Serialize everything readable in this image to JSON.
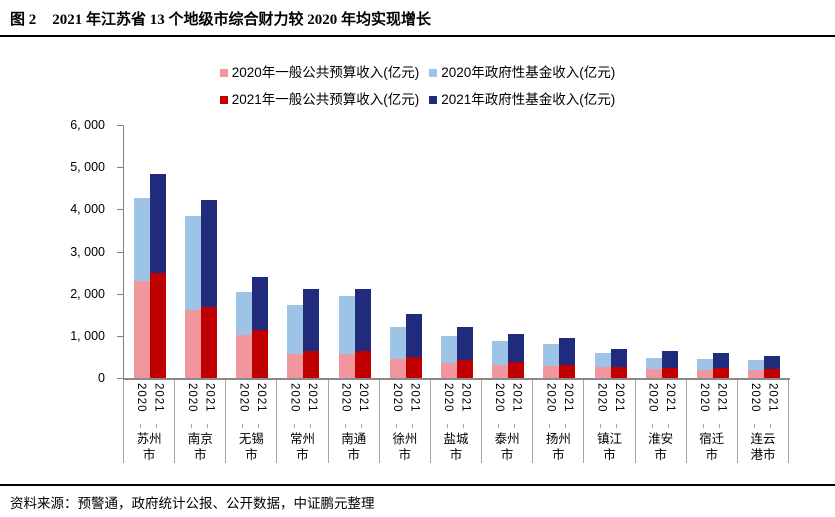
{
  "header": {
    "figure_label": "图 2",
    "title": "2021 年江苏省 13 个地级市综合财力较 2020 年均实现增长"
  },
  "footer": {
    "source": "资料来源：预警通，政府统计公报、公开数据，中证鹏元整理"
  },
  "chart_data": {
    "type": "bar",
    "stacked": true,
    "unit": "亿元",
    "legend_position": "top",
    "gridlines": false,
    "categories": [
      "苏州市",
      "南京市",
      "无锡市",
      "常州市",
      "南通市",
      "徐州市",
      "盐城市",
      "泰州市",
      "扬州市",
      "镇江市",
      "淮安市",
      "宿迁市",
      "连云港市"
    ],
    "bar_labels": [
      "2020",
      "2021"
    ],
    "y_axis": {
      "min": 0,
      "max": 6000,
      "tick_step": 1000,
      "tick_labels_top_down": [
        "6, 000",
        "5, 000",
        "4, 000",
        "3, 000",
        "2, 000",
        "1, 000",
        "0"
      ]
    },
    "series": [
      {
        "name": "2020年一般公共预算收入(亿元)",
        "bar": "2020",
        "color": "#F1969C",
        "values": [
          2300,
          1620,
          1030,
          560,
          580,
          440,
          360,
          310,
          280,
          250,
          215,
          195,
          200
        ]
      },
      {
        "name": "2020年政府性基金收入(亿元)",
        "bar": "2020",
        "color": "#9DC3E6",
        "values": [
          1970,
          2230,
          1010,
          1180,
          1360,
          780,
          630,
          560,
          530,
          340,
          260,
          255,
          220
        ]
      },
      {
        "name": "2021年一般公共预算收入(亿元)",
        "bar": "2021",
        "color": "#C00000",
        "values": [
          2500,
          1690,
          1150,
          640,
          650,
          500,
          420,
          370,
          320,
          270,
          235,
          235,
          215
        ]
      },
      {
        "name": "2021年政府性基金收入(亿元)",
        "bar": "2021",
        "color": "#212B7C",
        "values": [
          2340,
          2540,
          1250,
          1470,
          1470,
          1020,
          780,
          680,
          640,
          420,
          410,
          370,
          315
        ]
      }
    ]
  }
}
